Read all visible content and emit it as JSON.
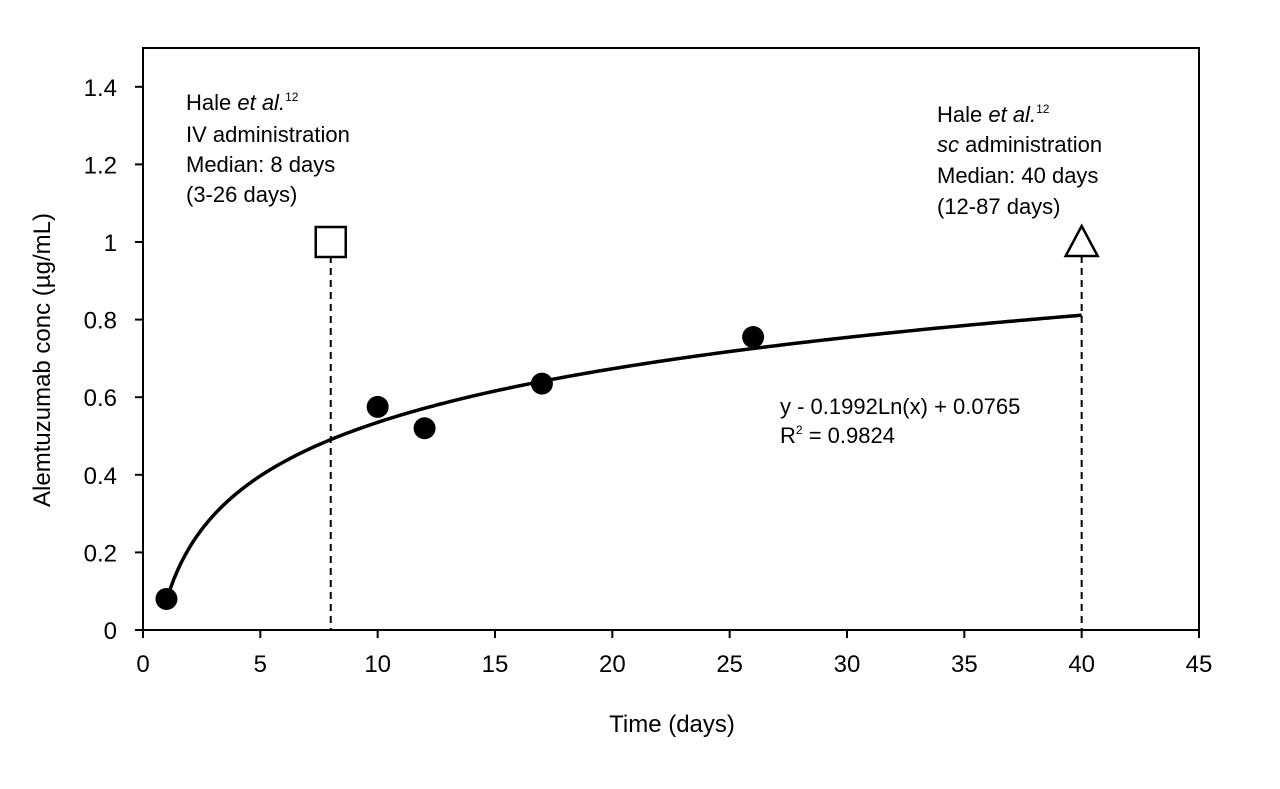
{
  "chart_data": {
    "type": "scatter",
    "xlabel": "Time (days)",
    "ylabel": "Alemtuzumab conc (µg/mL)",
    "xlim": [
      0,
      45
    ],
    "ylim": [
      0,
      1.5
    ],
    "x_ticks": [
      0,
      5,
      10,
      15,
      20,
      25,
      30,
      35,
      40,
      45
    ],
    "x_tick_labels": [
      "0",
      "5",
      "10",
      "15",
      "20",
      "25",
      "30",
      "35",
      "40",
      "45"
    ],
    "y_ticks": [
      0,
      0.2,
      0.4,
      0.6,
      0.8,
      1.0,
      1.2,
      1.4
    ],
    "y_tick_labels": [
      "0",
      "0.2",
      "0.4",
      "0.6",
      "0.8",
      "1",
      "1.2",
      "1.4"
    ],
    "grid": false,
    "series": [
      {
        "name": "observed",
        "marker": "filled-circle",
        "x": [
          1,
          10,
          12,
          17,
          26
        ],
        "y": [
          0.08,
          0.575,
          0.52,
          0.635,
          0.755
        ]
      }
    ],
    "fit": {
      "type": "logarithmic",
      "coef": 0.1992,
      "intercept": 0.0765,
      "x_range": [
        1,
        40
      ],
      "equation_text": "y - 0.1992Ln(x) + 0.0765",
      "r2_label": "R",
      "r2_sup": "2",
      "r2_value_text": " = 0.9824"
    },
    "reference_markers": [
      {
        "name": "iv-median",
        "shape": "open-square",
        "x": 8,
        "y": 1.0
      },
      {
        "name": "sc-median",
        "shape": "open-triangle",
        "x": 40,
        "y": 1.0
      }
    ],
    "annotations": {
      "iv": {
        "author": "Hale ",
        "etal": "et al.",
        "ref": "12",
        "line2": "IV administration",
        "line3": "Median: 8 days",
        "line4": "(3-26 days)"
      },
      "sc": {
        "author": "Hale ",
        "etal": "et al.",
        "ref": "12",
        "route": "sc",
        "route_rest": " administration",
        "line3": "Median: 40 days",
        "line4": "(12-87 days)"
      }
    }
  }
}
